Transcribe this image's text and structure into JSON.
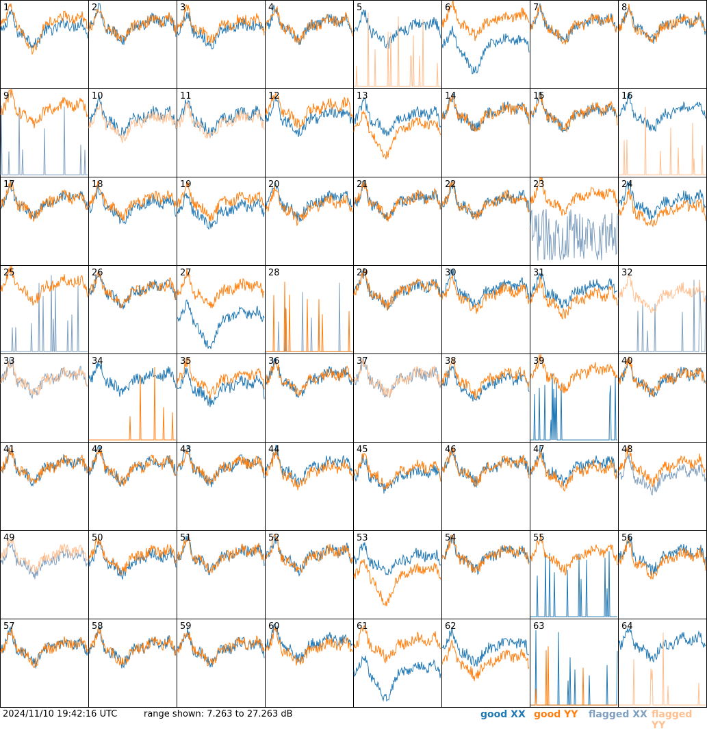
{
  "footer": {
    "timestamp": "2024/11/10 19:42:16 UTC",
    "range_text": "range shown: 7.263 to 27.263 dB",
    "legend": {
      "good_xx": "good XX",
      "good_yy": "good YY",
      "flagged_xx": "flagged XX",
      "flagged_yy": "flagged YY"
    }
  },
  "colors": {
    "good_xx": "#1f77b4",
    "good_yy": "#ff7f0e",
    "flagged_xx": "#7f9fbf",
    "flagged_yy": "#ffbf8f"
  },
  "chart_data": {
    "type": "line",
    "grid": "8x8 small multiples",
    "ylim": [
      7.263,
      27.263
    ],
    "unit": "dB",
    "panels": [
      {
        "label": "1",
        "xx": "good",
        "yy": "good",
        "xx_shape": "normal",
        "yy_shape": "dip",
        "xx_level": 20,
        "yy_level": 22
      },
      {
        "label": "2",
        "xx": "good",
        "yy": "good",
        "xx_shape": "normal",
        "yy_shape": "normal",
        "xx_level": 21,
        "yy_level": 21
      },
      {
        "label": "3",
        "xx": "good",
        "yy": "good",
        "xx_shape": "normal",
        "yy_shape": "normal",
        "xx_level": 20,
        "yy_level": 21
      },
      {
        "label": "4",
        "xx": "good",
        "yy": "good",
        "xx_shape": "normal",
        "yy_shape": "normal",
        "xx_level": 21,
        "yy_level": 21
      },
      {
        "label": "5",
        "xx": "good",
        "yy": "flagged",
        "xx_shape": "normal",
        "yy_shape": "spikes",
        "xx_level": 20,
        "yy_level": 8
      },
      {
        "label": "6",
        "xx": "good",
        "yy": "good",
        "xx_shape": "dip",
        "yy_shape": "normal",
        "xx_level": 17,
        "yy_level": 22
      },
      {
        "label": "7",
        "xx": "good",
        "yy": "good",
        "xx_shape": "normal",
        "yy_shape": "normal",
        "xx_level": 21,
        "yy_level": 21
      },
      {
        "label": "8",
        "xx": "good",
        "yy": "good",
        "xx_shape": "normal",
        "yy_shape": "normal",
        "xx_level": 21,
        "yy_level": 21
      },
      {
        "label": "9",
        "xx": "flagged",
        "yy": "good",
        "xx_shape": "spikes",
        "yy_shape": "normal",
        "xx_level": 8,
        "yy_level": 22
      },
      {
        "label": "10",
        "xx": "good",
        "yy": "flagged",
        "xx_shape": "normal",
        "yy_shape": "normal",
        "xx_level": 20,
        "yy_level": 19
      },
      {
        "label": "11",
        "xx": "good",
        "yy": "flagged",
        "xx_shape": "normal",
        "yy_shape": "normal",
        "xx_level": 20,
        "yy_level": 19
      },
      {
        "label": "12",
        "xx": "good",
        "yy": "good",
        "xx_shape": "normal",
        "yy_shape": "normal",
        "xx_level": 20,
        "yy_level": 22
      },
      {
        "label": "13",
        "xx": "good",
        "yy": "good",
        "xx_shape": "normal",
        "yy_shape": "dip",
        "xx_level": 20,
        "yy_level": 18
      },
      {
        "label": "14",
        "xx": "good",
        "yy": "good",
        "xx_shape": "normal",
        "yy_shape": "normal",
        "xx_level": 21,
        "yy_level": 21
      },
      {
        "label": "15",
        "xx": "good",
        "yy": "good",
        "xx_shape": "normal",
        "yy_shape": "normal",
        "xx_level": 21,
        "yy_level": 21
      },
      {
        "label": "16",
        "xx": "good",
        "yy": "flagged",
        "xx_shape": "normal",
        "yy_shape": "spikes",
        "xx_level": 21,
        "yy_level": 8
      },
      {
        "label": "17",
        "xx": "good",
        "yy": "good",
        "xx_shape": "normal",
        "yy_shape": "normal",
        "xx_level": 21,
        "yy_level": 21
      },
      {
        "label": "18",
        "xx": "good",
        "yy": "good",
        "xx_shape": "normal",
        "yy_shape": "normal",
        "xx_level": 20,
        "yy_level": 21
      },
      {
        "label": "19",
        "xx": "good",
        "yy": "good",
        "xx_shape": "normal",
        "yy_shape": "normal",
        "xx_level": 19,
        "yy_level": 21
      },
      {
        "label": "20",
        "xx": "good",
        "yy": "good",
        "xx_shape": "normal",
        "yy_shape": "normal",
        "xx_level": 21,
        "yy_level": 20
      },
      {
        "label": "21",
        "xx": "good",
        "yy": "good",
        "xx_shape": "normal",
        "yy_shape": "normal",
        "xx_level": 21,
        "yy_level": 21
      },
      {
        "label": "22",
        "xx": "good",
        "yy": "good",
        "xx_shape": "normal",
        "yy_shape": "normal",
        "xx_level": 21,
        "yy_level": 21
      },
      {
        "label": "23",
        "xx": "flagged",
        "yy": "good",
        "xx_shape": "noisy",
        "yy_shape": "normal",
        "xx_level": 14,
        "yy_level": 22
      },
      {
        "label": "24",
        "xx": "good",
        "yy": "good",
        "xx_shape": "normal",
        "yy_shape": "normal",
        "xx_level": 21,
        "yy_level": 19
      },
      {
        "label": "25",
        "xx": "flagged",
        "yy": "good",
        "xx_shape": "spikes",
        "yy_shape": "normal",
        "xx_level": 8,
        "yy_level": 22
      },
      {
        "label": "26",
        "xx": "good",
        "yy": "good",
        "xx_shape": "normal",
        "yy_shape": "normal",
        "xx_level": 21,
        "yy_level": 21
      },
      {
        "label": "27",
        "xx": "good",
        "yy": "good",
        "xx_shape": "dip",
        "yy_shape": "normal",
        "xx_level": 15,
        "yy_level": 21
      },
      {
        "label": "28",
        "xx": "flagged",
        "yy": "good",
        "xx_shape": "spikes",
        "yy_shape": "spikes",
        "xx_level": 8,
        "yy_level": 8
      },
      {
        "label": "29",
        "xx": "good",
        "yy": "good",
        "xx_shape": "normal",
        "yy_shape": "normal",
        "xx_level": 21,
        "yy_level": 21
      },
      {
        "label": "30",
        "xx": "good",
        "yy": "good",
        "xx_shape": "normal",
        "yy_shape": "normal",
        "xx_level": 21,
        "yy_level": 20
      },
      {
        "label": "31",
        "xx": "good",
        "yy": "good",
        "xx_shape": "normal",
        "yy_shape": "normal",
        "xx_level": 21,
        "yy_level": 19
      },
      {
        "label": "32",
        "xx": "flagged",
        "yy": "flagged",
        "xx_shape": "spikes",
        "yy_shape": "normal",
        "xx_level": 8,
        "yy_level": 20
      },
      {
        "label": "33",
        "xx": "flagged",
        "yy": "flagged",
        "xx_shape": "normal",
        "yy_shape": "normal",
        "xx_level": 21,
        "yy_level": 21
      },
      {
        "label": "34",
        "xx": "good",
        "yy": "good",
        "xx_shape": "normal",
        "yy_shape": "spikes",
        "xx_level": 21,
        "yy_level": 8
      },
      {
        "label": "35",
        "xx": "good",
        "yy": "good",
        "xx_shape": "normal",
        "yy_shape": "normal",
        "xx_level": 19,
        "yy_level": 21
      },
      {
        "label": "36",
        "xx": "good",
        "yy": "good",
        "xx_shape": "normal",
        "yy_shape": "normal",
        "xx_level": 21,
        "yy_level": 21
      },
      {
        "label": "37",
        "xx": "flagged",
        "yy": "flagged",
        "xx_shape": "normal",
        "yy_shape": "normal",
        "xx_level": 21,
        "yy_level": 21
      },
      {
        "label": "38",
        "xx": "good",
        "yy": "good",
        "xx_shape": "normal",
        "yy_shape": "normal",
        "xx_level": 20,
        "yy_level": 21
      },
      {
        "label": "39",
        "xx": "good",
        "yy": "good",
        "xx_shape": "spikes",
        "yy_shape": "normal",
        "xx_level": 8,
        "yy_level": 22
      },
      {
        "label": "40",
        "xx": "good",
        "yy": "good",
        "xx_shape": "normal",
        "yy_shape": "normal",
        "xx_level": 21,
        "yy_level": 21
      },
      {
        "label": "41",
        "xx": "good",
        "yy": "good",
        "xx_shape": "normal",
        "yy_shape": "normal",
        "xx_level": 21,
        "yy_level": 21
      },
      {
        "label": "42",
        "xx": "good",
        "yy": "good",
        "xx_shape": "normal",
        "yy_shape": "normal",
        "xx_level": 21,
        "yy_level": 21
      },
      {
        "label": "43",
        "xx": "good",
        "yy": "good",
        "xx_shape": "normal",
        "yy_shape": "normal",
        "xx_level": 21,
        "yy_level": 21
      },
      {
        "label": "44",
        "xx": "good",
        "yy": "good",
        "xx_shape": "normal",
        "yy_shape": "normal",
        "xx_level": 21,
        "yy_level": 20
      },
      {
        "label": "45",
        "xx": "good",
        "yy": "good",
        "xx_shape": "normal",
        "yy_shape": "normal",
        "xx_level": 19,
        "yy_level": 20
      },
      {
        "label": "46",
        "xx": "good",
        "yy": "good",
        "xx_shape": "normal",
        "yy_shape": "normal",
        "xx_level": 21,
        "yy_level": 21
      },
      {
        "label": "47",
        "xx": "good",
        "yy": "good",
        "xx_shape": "normal",
        "yy_shape": "normal",
        "xx_level": 21,
        "yy_level": 20
      },
      {
        "label": "48",
        "xx": "flagged",
        "yy": "good",
        "xx_shape": "normal",
        "yy_shape": "normal",
        "xx_level": 19,
        "yy_level": 21
      },
      {
        "label": "49",
        "xx": "flagged",
        "yy": "flagged",
        "xx_shape": "normal",
        "yy_shape": "normal",
        "xx_level": 20,
        "yy_level": 21
      },
      {
        "label": "50",
        "xx": "good",
        "yy": "good",
        "xx_shape": "normal",
        "yy_shape": "normal",
        "xx_level": 20,
        "yy_level": 21
      },
      {
        "label": "51",
        "xx": "good",
        "yy": "good",
        "xx_shape": "normal",
        "yy_shape": "normal",
        "xx_level": 21,
        "yy_level": 21
      },
      {
        "label": "52",
        "xx": "good",
        "yy": "good",
        "xx_shape": "normal",
        "yy_shape": "normal",
        "xx_level": 21,
        "yy_level": 21
      },
      {
        "label": "53",
        "xx": "good",
        "yy": "good",
        "xx_shape": "normal",
        "yy_shape": "dip",
        "xx_level": 20,
        "yy_level": 17
      },
      {
        "label": "54",
        "xx": "good",
        "yy": "good",
        "xx_shape": "normal",
        "yy_shape": "normal",
        "xx_level": 21,
        "yy_level": 21
      },
      {
        "label": "55",
        "xx": "good",
        "yy": "good",
        "xx_shape": "spikes",
        "yy_shape": "normal",
        "xx_level": 8,
        "yy_level": 21
      },
      {
        "label": "56",
        "xx": "good",
        "yy": "good",
        "xx_shape": "normal",
        "yy_shape": "normal",
        "xx_level": 21,
        "yy_level": 20
      },
      {
        "label": "57",
        "xx": "good",
        "yy": "good",
        "xx_shape": "normal",
        "yy_shape": "normal",
        "xx_level": 20,
        "yy_level": 20
      },
      {
        "label": "58",
        "xx": "good",
        "yy": "good",
        "xx_shape": "normal",
        "yy_shape": "normal",
        "xx_level": 20,
        "yy_level": 20
      },
      {
        "label": "59",
        "xx": "good",
        "yy": "good",
        "xx_shape": "normal",
        "yy_shape": "normal",
        "xx_level": 20,
        "yy_level": 20
      },
      {
        "label": "60",
        "xx": "good",
        "yy": "good",
        "xx_shape": "normal",
        "yy_shape": "normal",
        "xx_level": 21,
        "yy_level": 20
      },
      {
        "label": "61",
        "xx": "good",
        "yy": "good",
        "xx_shape": "dip",
        "yy_shape": "normal",
        "xx_level": 15,
        "yy_level": 21
      },
      {
        "label": "62",
        "xx": "good",
        "yy": "good",
        "xx_shape": "normal",
        "yy_shape": "normal",
        "xx_level": 20,
        "yy_level": 17
      },
      {
        "label": "63",
        "xx": "good",
        "yy": "good",
        "xx_shape": "spikes",
        "yy_shape": "spikes",
        "xx_level": 8,
        "yy_level": 8
      },
      {
        "label": "64",
        "xx": "good",
        "yy": "flagged",
        "xx_shape": "normal",
        "yy_shape": "spikes",
        "xx_level": 21,
        "yy_level": 8
      }
    ]
  }
}
